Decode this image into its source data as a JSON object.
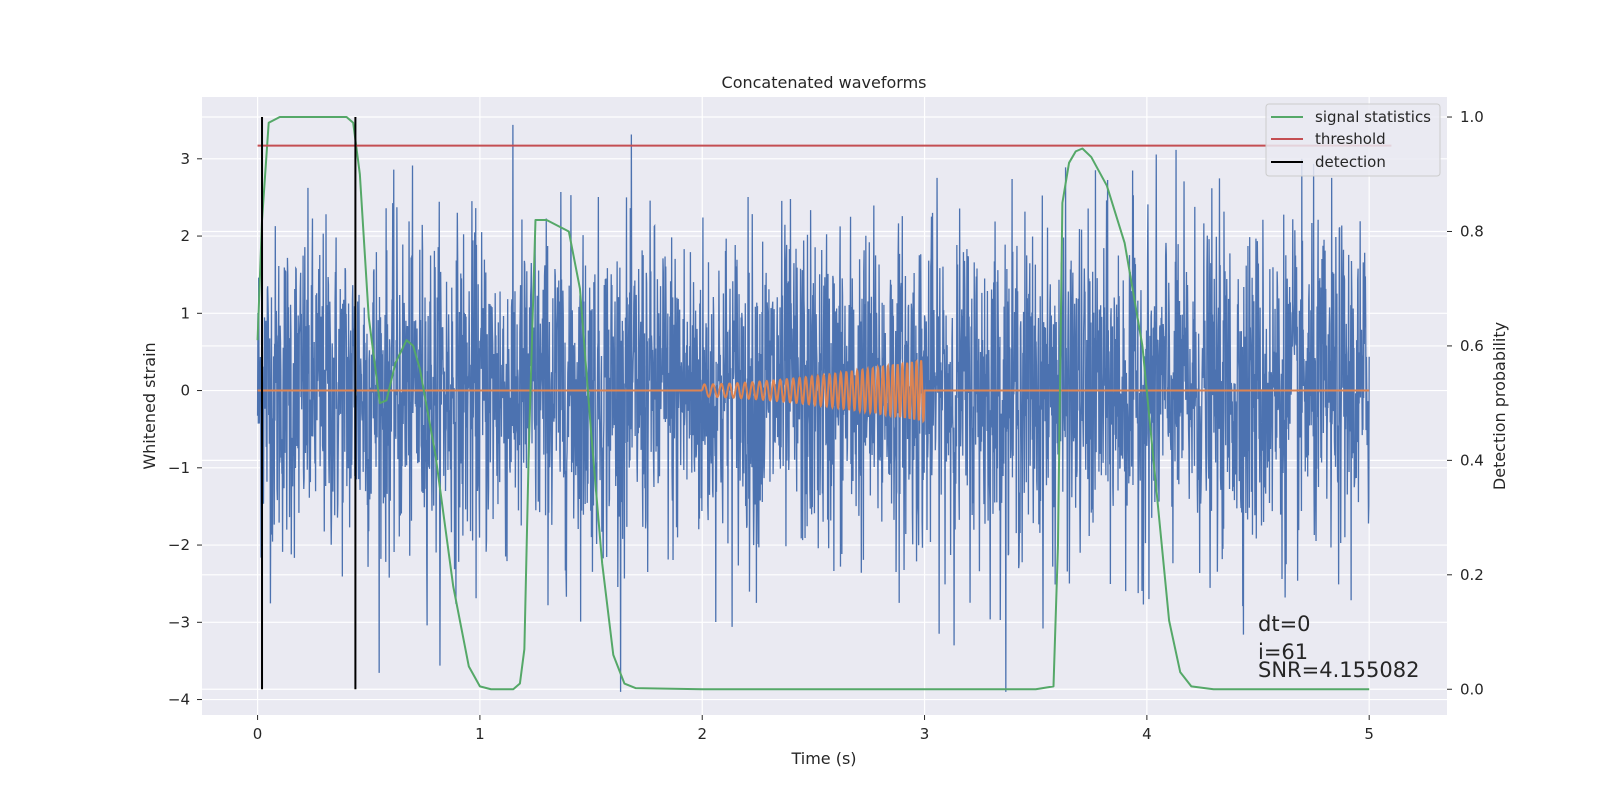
{
  "chart_data": {
    "type": "line",
    "title": "Concatenated waveforms",
    "xlabel": "Time (s)",
    "ylabel": "Whitened strain",
    "y2label": "Detection probability",
    "xlim": [
      -0.25,
      5.35
    ],
    "ylim": [
      -4.2,
      3.8
    ],
    "y2lim": [
      -0.045,
      1.035
    ],
    "xticks": [
      0,
      1,
      2,
      3,
      4,
      5
    ],
    "yticks": [
      -4,
      -3,
      -2,
      -1,
      0,
      1,
      2,
      3
    ],
    "y2ticks": [
      0.0,
      0.2,
      0.4,
      0.6,
      0.8,
      1.0
    ],
    "xtick_labels": [
      "0",
      "1",
      "2",
      "3",
      "4",
      "5"
    ],
    "ytick_labels": [
      "−4",
      "−3",
      "−2",
      "−1",
      "0",
      "1",
      "2",
      "3"
    ],
    "y2tick_labels": [
      "0.0",
      "0.2",
      "0.4",
      "0.6",
      "0.8",
      "1.0"
    ],
    "grid": true,
    "legend_position": "top-right",
    "colors": {
      "strain": "#4c72b0",
      "template": "#dd8452",
      "signal_statistics": "#55a868",
      "threshold": "#c44e52",
      "detection": "#000000",
      "background": "#eaeaf2"
    },
    "series": [
      {
        "name": "",
        "key": "strain",
        "axis": "left",
        "style": "noise",
        "x_range": [
          0,
          5
        ],
        "amplitude_range": [
          -3.9,
          3.45
        ]
      },
      {
        "name": "",
        "key": "template",
        "axis": "left",
        "style": "chirp",
        "x_range": [
          2.0,
          3.0
        ],
        "amplitude_start": 0.08,
        "amplitude_end": 0.4
      },
      {
        "name": "signal statistics",
        "key": "signal_statistics",
        "axis": "right",
        "x": [
          0,
          0.02,
          0.05,
          0.1,
          0.2,
          0.3,
          0.4,
          0.43,
          0.46,
          0.5,
          0.55,
          0.58,
          0.62,
          0.67,
          0.7,
          0.73,
          0.8,
          0.88,
          0.95,
          1.0,
          1.05,
          1.1,
          1.15,
          1.18,
          1.2,
          1.22,
          1.25,
          1.3,
          1.4,
          1.45,
          1.5,
          1.55,
          1.6,
          1.65,
          1.7,
          2.0,
          2.5,
          3.0,
          3.5,
          3.58,
          3.6,
          3.62,
          3.65,
          3.68,
          3.71,
          3.75,
          3.82,
          3.9,
          3.98,
          4.05,
          4.1,
          4.15,
          4.2,
          4.3,
          5.0
        ],
        "y": [
          0.61,
          0.82,
          0.99,
          1.0,
          1.0,
          1.0,
          1.0,
          0.99,
          0.9,
          0.65,
          0.5,
          0.505,
          0.57,
          0.61,
          0.6,
          0.56,
          0.41,
          0.18,
          0.04,
          0.005,
          0.0,
          0.0,
          0.0,
          0.01,
          0.07,
          0.42,
          0.82,
          0.82,
          0.8,
          0.7,
          0.45,
          0.22,
          0.06,
          0.01,
          0.002,
          0.0,
          0.0,
          0.0,
          0.0,
          0.005,
          0.25,
          0.85,
          0.92,
          0.94,
          0.945,
          0.93,
          0.88,
          0.78,
          0.6,
          0.32,
          0.12,
          0.03,
          0.005,
          0.0,
          0.0
        ]
      },
      {
        "name": "threshold",
        "key": "threshold",
        "axis": "right",
        "x": [
          0,
          5.1
        ],
        "y": [
          0.95,
          0.95
        ]
      },
      {
        "name": "detection",
        "key": "detection",
        "axis": "right",
        "type": "vlines",
        "x": [
          0.02,
          0.44
        ],
        "ymin": 0.0,
        "ymax": 1.0
      }
    ],
    "annotations": [
      "dt=0",
      "i=61",
      "SNR=4.155082"
    ],
    "annotation_anchor": {
      "x": 4.5,
      "y": -3.0
    }
  }
}
